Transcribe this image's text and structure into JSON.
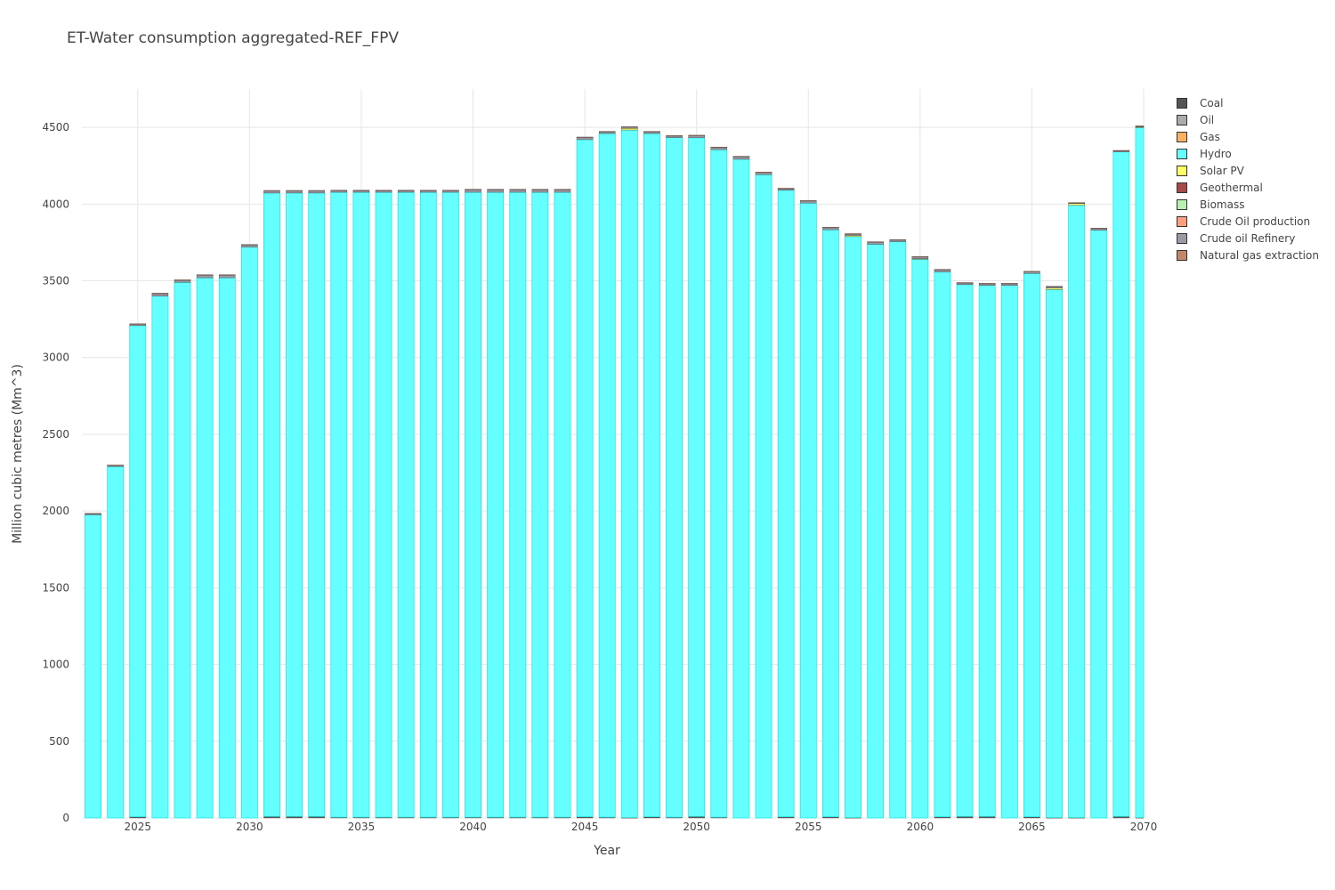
{
  "chart_data": {
    "type": "bar",
    "stacked": true,
    "title": "ET-Water consumption aggregated-REF_FPV",
    "xlabel": "Year",
    "ylabel": "Million cubic metres (Mm^3)",
    "xlim": [
      2022.5,
      2070
    ],
    "ylim": [
      0,
      4750
    ],
    "x_ticks": [
      2025,
      2030,
      2035,
      2040,
      2045,
      2050,
      2055,
      2060,
      2065,
      2070
    ],
    "y_ticks": [
      0,
      500,
      1000,
      1500,
      2000,
      2500,
      3000,
      3500,
      4000,
      4500
    ],
    "grid": true,
    "legend_position": "right",
    "categories": [
      2023,
      2024,
      2025,
      2026,
      2027,
      2028,
      2029,
      2030,
      2031,
      2032,
      2033,
      2034,
      2035,
      2036,
      2037,
      2038,
      2039,
      2040,
      2041,
      2042,
      2043,
      2044,
      2045,
      2046,
      2047,
      2048,
      2049,
      2050,
      2051,
      2052,
      2053,
      2054,
      2055,
      2056,
      2057,
      2058,
      2059,
      2060,
      2061,
      2062,
      2063,
      2064,
      2065,
      2066,
      2067,
      2068,
      2069,
      2070
    ],
    "series": [
      {
        "name": "Coal",
        "color": "#555555",
        "values": [
          0,
          0,
          8,
          0,
          0,
          0,
          0,
          0,
          10,
          10,
          10,
          5,
          5,
          5,
          5,
          5,
          5,
          5,
          5,
          5,
          5,
          5,
          8,
          5,
          0,
          8,
          5,
          10,
          5,
          0,
          0,
          8,
          0,
          8,
          0,
          0,
          0,
          0,
          8,
          10,
          10,
          0,
          8,
          0,
          0,
          0,
          10,
          0
        ]
      },
      {
        "name": "Oil",
        "color": "#aaaaaa",
        "values": [
          0,
          0,
          0,
          0,
          0,
          0,
          0,
          0,
          0,
          0,
          0,
          0,
          0,
          0,
          0,
          0,
          0,
          0,
          0,
          0,
          0,
          0,
          0,
          0,
          0,
          0,
          0,
          0,
          0,
          0,
          0,
          0,
          0,
          0,
          0,
          0,
          0,
          0,
          0,
          0,
          0,
          0,
          0,
          0,
          0,
          0,
          0,
          0
        ]
      },
      {
        "name": "Gas",
        "color": "#ffb061",
        "values": [
          0,
          0,
          0,
          0,
          0,
          0,
          0,
          0,
          0,
          0,
          0,
          0,
          0,
          0,
          0,
          0,
          0,
          0,
          0,
          0,
          0,
          0,
          0,
          0,
          3,
          0,
          0,
          0,
          0,
          0,
          0,
          0,
          0,
          0,
          3,
          0,
          0,
          0,
          0,
          0,
          0,
          0,
          0,
          3,
          3,
          0,
          0,
          3
        ]
      },
      {
        "name": "Hydro",
        "color": "#66ffff",
        "values": [
          1975,
          2290,
          3200,
          3400,
          3490,
          3520,
          3520,
          3720,
          4062,
          4062,
          4062,
          4072,
          4072,
          4072,
          4072,
          4072,
          4072,
          4072,
          4072,
          4072,
          4072,
          4072,
          4412,
          4455,
          4480,
          4452,
          4428,
          4422,
          4350,
          4292,
          4192,
          4082,
          4007,
          3825,
          3785,
          3738,
          3755,
          3640,
          3550,
          3465,
          3460,
          3470,
          3540,
          3440,
          3990,
          3830,
          4330,
          4495
        ]
      },
      {
        "name": "Solar PV",
        "color": "#ffff66",
        "values": [
          0,
          0,
          0,
          0,
          0,
          0,
          0,
          0,
          0,
          0,
          0,
          0,
          0,
          0,
          0,
          0,
          0,
          0,
          0,
          0,
          0,
          0,
          0,
          0,
          10,
          0,
          0,
          0,
          0,
          0,
          0,
          0,
          0,
          0,
          8,
          0,
          0,
          5,
          0,
          0,
          0,
          0,
          0,
          10,
          10,
          0,
          0,
          5
        ]
      },
      {
        "name": "Geothermal",
        "color": "#a84a4a",
        "values": [
          0,
          0,
          0,
          0,
          0,
          0,
          0,
          0,
          0,
          0,
          0,
          0,
          0,
          0,
          0,
          0,
          0,
          0,
          0,
          0,
          0,
          0,
          0,
          0,
          0,
          0,
          0,
          0,
          0,
          0,
          0,
          0,
          0,
          0,
          0,
          0,
          0,
          0,
          0,
          0,
          0,
          0,
          0,
          0,
          0,
          0,
          0,
          5
        ]
      },
      {
        "name": "Biomass",
        "color": "#b8f0b0",
        "values": [
          0,
          0,
          0,
          0,
          0,
          0,
          0,
          0,
          0,
          0,
          0,
          0,
          0,
          0,
          0,
          0,
          0,
          0,
          0,
          0,
          0,
          0,
          0,
          0,
          0,
          0,
          0,
          0,
          0,
          0,
          0,
          0,
          0,
          0,
          0,
          0,
          0,
          0,
          0,
          0,
          0,
          0,
          0,
          0,
          0,
          0,
          0,
          0
        ]
      },
      {
        "name": "Crude Oil production",
        "color": "#ff9f80",
        "values": [
          0,
          0,
          0,
          0,
          0,
          0,
          0,
          0,
          0,
          0,
          0,
          0,
          0,
          0,
          0,
          0,
          0,
          0,
          0,
          0,
          0,
          0,
          0,
          0,
          0,
          0,
          0,
          0,
          0,
          0,
          0,
          0,
          0,
          0,
          0,
          0,
          0,
          0,
          0,
          0,
          0,
          0,
          0,
          0,
          0,
          0,
          0,
          0
        ]
      },
      {
        "name": "Crude oil Refinery",
        "color": "#9a9aa6",
        "values": [
          8,
          8,
          10,
          18,
          15,
          18,
          18,
          15,
          15,
          15,
          15,
          12,
          12,
          12,
          12,
          12,
          12,
          18,
          18,
          18,
          18,
          18,
          15,
          12,
          10,
          12,
          12,
          15,
          15,
          18,
          15,
          12,
          15,
          15,
          10,
          15,
          12,
          12,
          15,
          12,
          12,
          12,
          12,
          10,
          5,
          12,
          8,
          0
        ]
      },
      {
        "name": "Natural gas extraction",
        "color": "#c4866a",
        "values": [
          2,
          2,
          2,
          2,
          2,
          2,
          2,
          2,
          2,
          2,
          2,
          2,
          2,
          2,
          2,
          2,
          2,
          2,
          2,
          2,
          2,
          2,
          2,
          2,
          2,
          2,
          2,
          2,
          2,
          2,
          2,
          2,
          2,
          2,
          2,
          2,
          2,
          2,
          2,
          2,
          2,
          2,
          2,
          2,
          2,
          2,
          2,
          2
        ]
      }
    ]
  }
}
